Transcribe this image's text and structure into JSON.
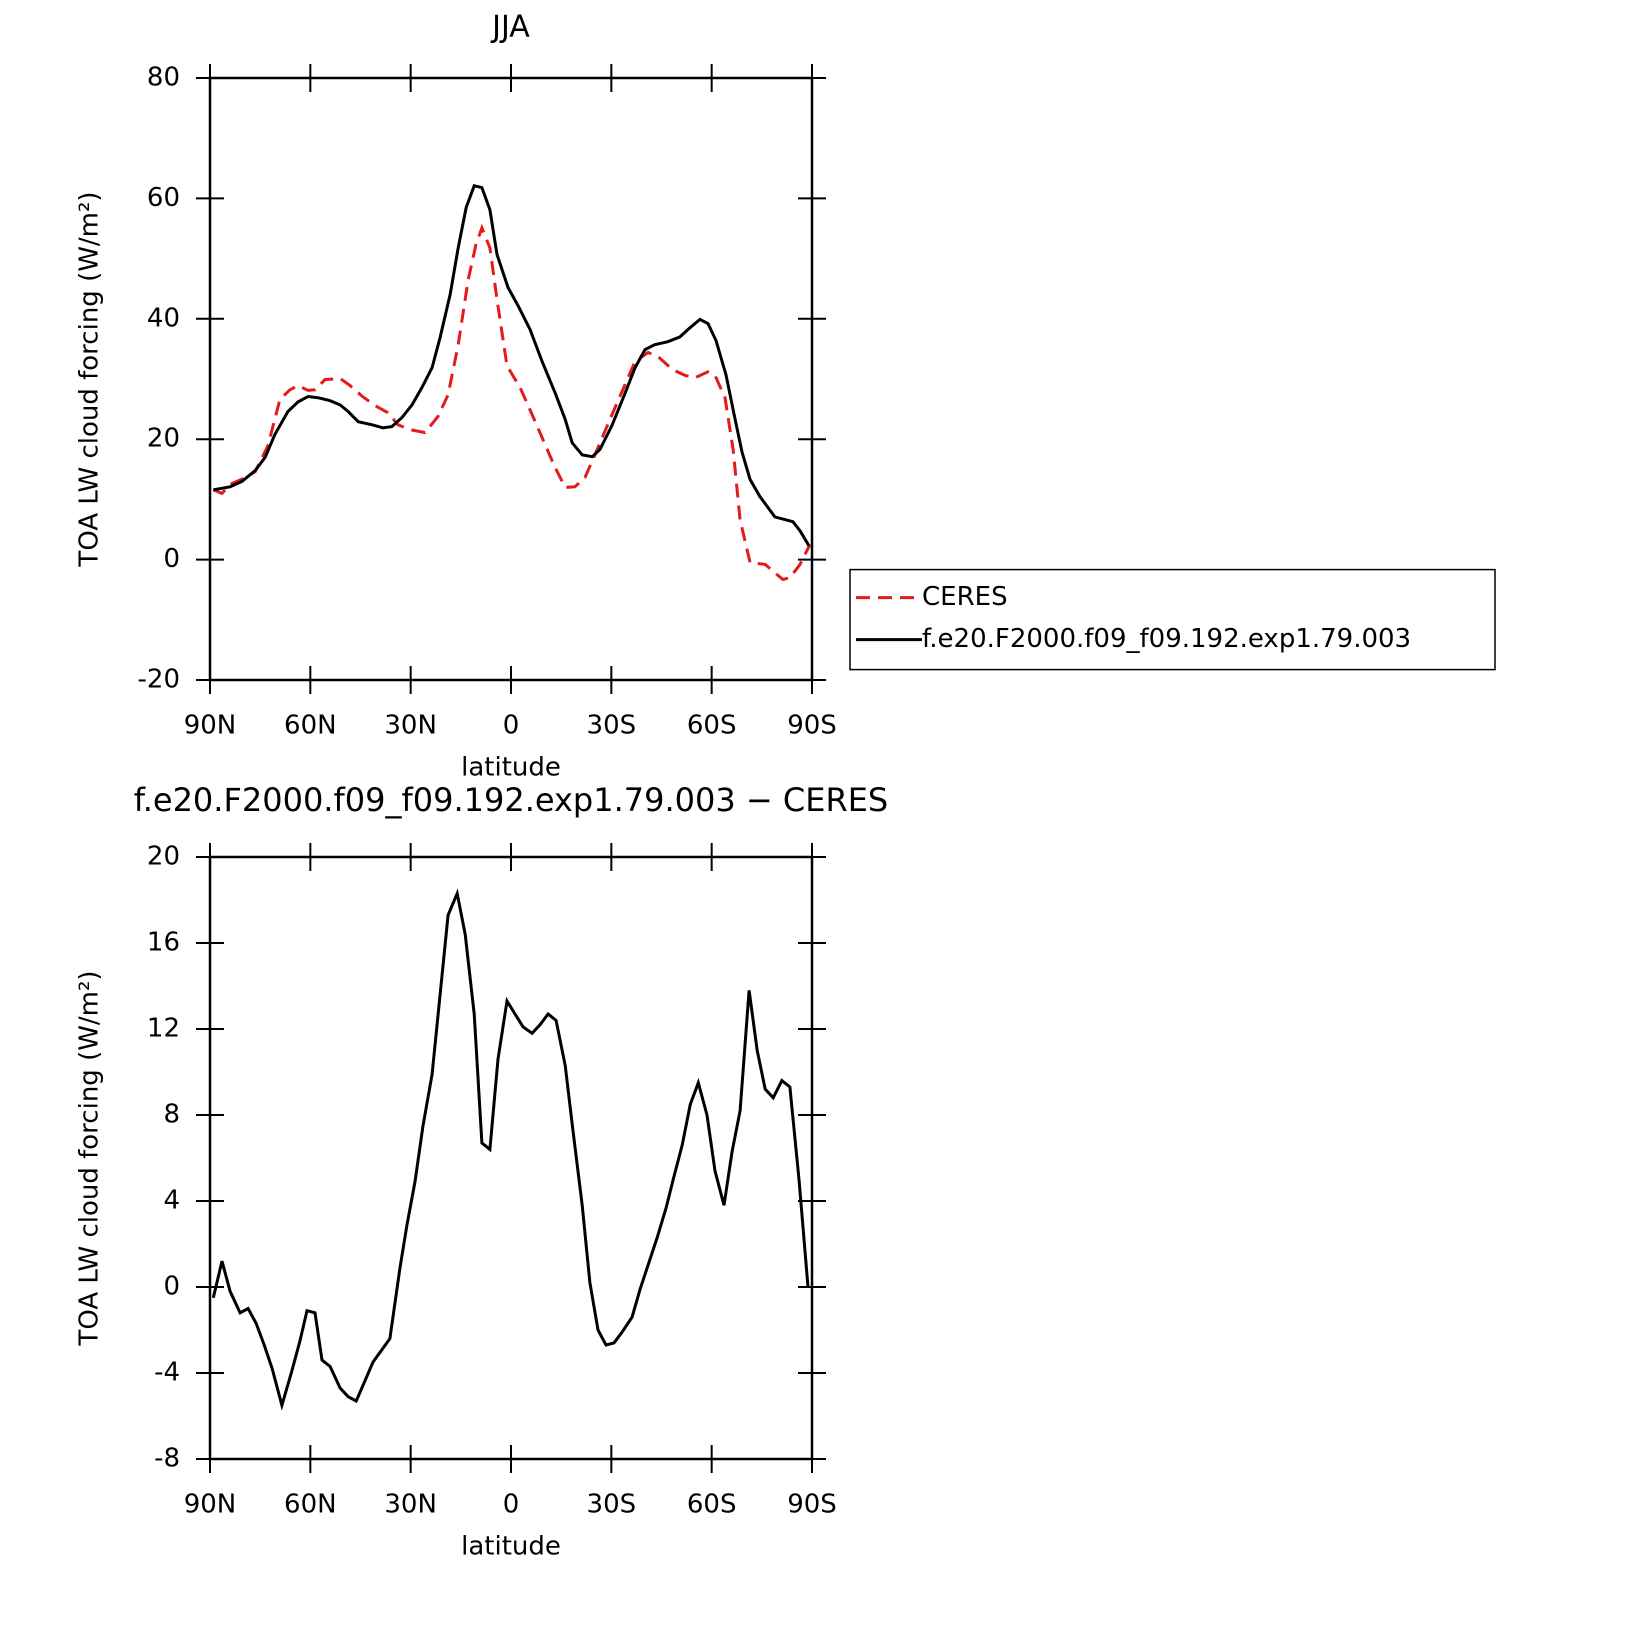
{
  "chart_data": [
    {
      "type": "line",
      "title": "JJA",
      "ylabel": "TOA LW cloud forcing (W/m²)",
      "xlabel": "latitude",
      "xlim": [
        90,
        -90
      ],
      "xticks": [
        {
          "value": 90,
          "label": "90N"
        },
        {
          "value": 60,
          "label": "60N"
        },
        {
          "value": 30,
          "label": "30N"
        },
        0,
        {
          "value": -30,
          "label": "30S"
        },
        {
          "value": -60,
          "label": "60S"
        },
        {
          "value": -90,
          "label": "90S"
        }
      ],
      "ylim": [
        -20,
        80
      ],
      "yticks": [
        -20,
        0,
        20,
        40,
        60,
        80
      ],
      "legend": "right",
      "series": [
        {
          "name": "CERES",
          "color": "#e41a1c",
          "style": "dashed",
          "x": [
            89,
            86.4,
            84,
            79.5,
            76.5,
            72.7,
            69.1,
            66.1,
            63.7,
            60.7,
            58.6,
            55.6,
            51.1,
            48.1,
            44.6,
            40.7,
            36.8,
            33.8,
            30.2,
            25.7,
            21.8,
            18.8,
            15.8,
            12.8,
            10.5,
            8.7,
            6.3,
            4.2,
            1.2,
            -2.7,
            -6.3,
            -10.2,
            -13.2,
            -16.2,
            -19.1,
            -22.1,
            -25.1,
            -29.6,
            -33.2,
            -37.1,
            -41,
            -44,
            -48.2,
            -52.1,
            -55,
            -58.9,
            -61,
            -64,
            -66.4,
            -68.5,
            -71.5,
            -76,
            -78.9,
            -81.3,
            -83.4,
            -86.4,
            -89.4
          ],
          "values": [
            11.6,
            11,
            12.5,
            13.6,
            14.6,
            18.9,
            26.6,
            28.2,
            28.9,
            28.1,
            28.2,
            29.9,
            30.1,
            28.9,
            27.2,
            25.6,
            24.4,
            22.4,
            21.6,
            21.1,
            23.8,
            27.4,
            35.7,
            46.5,
            52.3,
            55.1,
            51.8,
            43.2,
            32.2,
            28.6,
            24.1,
            19.1,
            15.3,
            12,
            12.1,
            13.6,
            17.4,
            23.3,
            27.9,
            32.9,
            34.4,
            33.7,
            31.6,
            30.6,
            30.2,
            31.2,
            30.6,
            26.9,
            18.3,
            6.6,
            -0.5,
            -0.8,
            -2.2,
            -3.3,
            -3,
            -0.8,
            2.5
          ]
        },
        {
          "name": "f.e20.F2000.f09_f09.192.exp1.79.003",
          "color": "#000000",
          "style": "solid",
          "x": [
            89,
            84,
            80.4,
            76.5,
            73.5,
            70.6,
            66.7,
            63.7,
            60.7,
            57.7,
            54.1,
            51.1,
            48.7,
            45.7,
            41.5,
            38.3,
            35.6,
            32.6,
            29.6,
            26.6,
            23.6,
            21.2,
            18.2,
            15.8,
            13.4,
            11,
            8.7,
            6.3,
            4.2,
            0.9,
            -2.1,
            -5.7,
            -9.3,
            -13.2,
            -16.2,
            -18.3,
            -21.3,
            -24.3,
            -26.6,
            -30.2,
            -34.1,
            -37.1,
            -40.1,
            -43,
            -46.9,
            -50.5,
            -53.5,
            -56.5,
            -58.9,
            -61.3,
            -64.3,
            -66.7,
            -69.1,
            -71.5,
            -74.4,
            -78.9,
            -84.3,
            -86.4,
            -89.1
          ],
          "values": [
            11.6,
            12.1,
            13,
            14.8,
            17,
            20.8,
            24.6,
            26.2,
            27.1,
            26.9,
            26.4,
            25.7,
            24.6,
            22.9,
            22.4,
            21.9,
            22.1,
            23.6,
            25.7,
            28.6,
            31.9,
            36.9,
            44,
            51.8,
            58.5,
            62.1,
            61.8,
            58.1,
            50.7,
            45.2,
            42.2,
            38.2,
            32.9,
            27.7,
            23.3,
            19.4,
            17.4,
            17.1,
            18.3,
            22.3,
            27.6,
            31.9,
            34.9,
            35.7,
            36.2,
            37,
            38.5,
            39.9,
            39.2,
            36.4,
            30.7,
            24.1,
            17.8,
            13.3,
            10.5,
            7.1,
            6.3,
            4.8,
            2.3
          ]
        }
      ]
    },
    {
      "type": "line",
      "title": "f.e20.F2000.f09_f09.192.exp1.79.003 − CERES",
      "ylabel": "TOA LW cloud forcing (W/m²)",
      "xlabel": "latitude",
      "xlim": [
        90,
        -90
      ],
      "xticks": [
        {
          "value": 90,
          "label": "90N"
        },
        {
          "value": 60,
          "label": "60N"
        },
        {
          "value": 30,
          "label": "30N"
        },
        0,
        {
          "value": -30,
          "label": "30S"
        },
        {
          "value": -60,
          "label": "60S"
        },
        {
          "value": -90,
          "label": "90S"
        }
      ],
      "ylim": [
        -8,
        20
      ],
      "yticks": [
        -8,
        -4,
        0,
        4,
        8,
        12,
        16,
        20
      ],
      "series": [
        {
          "color": "#000000",
          "style": "solid",
          "x": [
            89,
            86.4,
            84,
            81,
            78.6,
            76.2,
            73.8,
            71.4,
            68.5,
            65.5,
            63.1,
            61,
            58.6,
            56.5,
            54.1,
            51.1,
            48.7,
            46.3,
            44.3,
            41.3,
            36.2,
            33.2,
            31.1,
            28.7,
            26.3,
            23.6,
            21.2,
            18.8,
            16.1,
            13.7,
            11,
            8.7,
            6.3,
            3.9,
            1.2,
            -1.2,
            -3.6,
            -6.3,
            -8.7,
            -11.1,
            -13.5,
            -16.2,
            -18.5,
            -21.3,
            -23.6,
            -26,
            -28.4,
            -30.8,
            -33.2,
            -36.2,
            -38.6,
            -41.6,
            -43.7,
            -46.4,
            -48.5,
            -51.2,
            -53.6,
            -56,
            -58.6,
            -61,
            -63.7,
            -66.1,
            -68.5,
            -71.2,
            -73.6,
            -76,
            -78.4,
            -81,
            -83.4,
            -86.1,
            -88.8
          ],
          "values": [
            -0.5,
            1.2,
            -0.2,
            -1.2,
            -1,
            -1.7,
            -2.7,
            -3.8,
            -5.5,
            -3.9,
            -2.5,
            -1.1,
            -1.2,
            -3.4,
            -3.7,
            -4.7,
            -5.1,
            -5.3,
            -4.6,
            -3.5,
            -2.4,
            0.9,
            2.9,
            4.9,
            7.5,
            9.9,
            13.6,
            17.3,
            18.3,
            16.4,
            12.7,
            6.7,
            6.4,
            10.6,
            13.3,
            12.7,
            12.1,
            11.8,
            12.2,
            12.7,
            12.4,
            10.3,
            7.3,
            3.8,
            0.2,
            -2,
            -2.7,
            -2.6,
            -2.1,
            -1.4,
            -0.1,
            1.3,
            2.3,
            3.7,
            5,
            6.6,
            8.5,
            9.5,
            8,
            5.4,
            3.8,
            6.3,
            8.2,
            13.8,
            11,
            9.2,
            8.8,
            9.6,
            9.3,
            5,
            0
          ]
        }
      ]
    }
  ]
}
